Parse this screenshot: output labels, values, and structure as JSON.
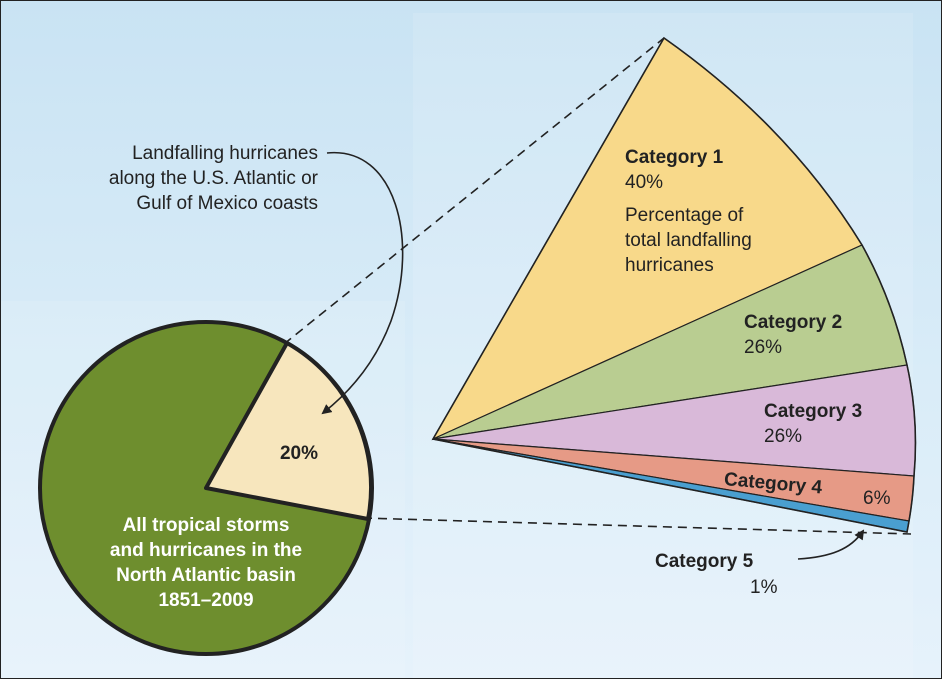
{
  "callout": {
    "line1": "Landfalling hurricanes",
    "line2": "along the U.S. Atlantic or",
    "line3": "Gulf of Mexico coasts"
  },
  "pie": {
    "slice_percent": "20%",
    "label": [
      "All tropical storms",
      "and hurricanes in the",
      "North Atlantic basin",
      "1851–2009"
    ],
    "slice_value": 20,
    "colors": {
      "main": "#6e8e2e",
      "slice": "#f7e6bd"
    }
  },
  "fan": {
    "note": [
      "Percentage of",
      "total landfalling",
      "hurricanes"
    ],
    "categories": [
      {
        "name": "Category 1",
        "percent": "40%",
        "value": 40,
        "color": "#f8d98a"
      },
      {
        "name": "Category 2",
        "percent": "26%",
        "value": 26,
        "color": "#b9cd91"
      },
      {
        "name": "Category 3",
        "percent": "26%",
        "value": 26,
        "color": "#d9b9d9"
      },
      {
        "name": "Category 4",
        "percent": "6%",
        "value": 6,
        "color": "#e69a86"
      },
      {
        "name": "Category 5",
        "percent": "1%",
        "value": 1,
        "color": "#4a9fd0"
      }
    ]
  }
}
